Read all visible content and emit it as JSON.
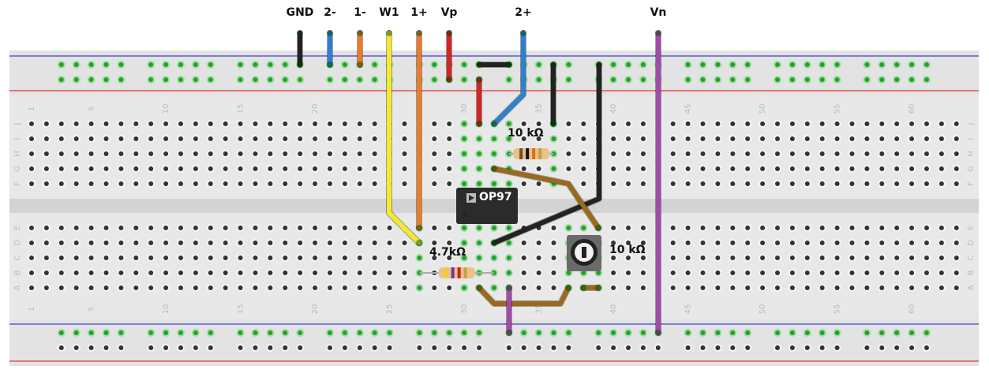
{
  "terminal_labels": [
    {
      "text": "GND",
      "wire_color": "#222222"
    },
    {
      "text": "2-",
      "wire_color": "#2f7fd0"
    },
    {
      "text": "1-",
      "wire_color": "#ea7b2c"
    },
    {
      "text": "W1",
      "wire_color": "#f4ea2a"
    },
    {
      "text": "1+",
      "wire_color": "#ea7b2c"
    },
    {
      "text": "Vp",
      "wire_color": "#d42424"
    },
    {
      "text": "2+",
      "wire_color": "#2f7fd0"
    },
    {
      "text": "Vn",
      "wire_color": "#a24aa8"
    }
  ],
  "components": {
    "r1_label": "10 kΩ",
    "r2_label": "4.7kΩ",
    "pot_label": "10 kΩ",
    "chip_label": "OP97"
  },
  "board": {
    "column_numbers": [
      "1",
      "5",
      "10",
      "15",
      "20",
      "25",
      "30",
      "35",
      "40",
      "45",
      "50",
      "55",
      "60"
    ],
    "rows_top": [
      "J",
      "I",
      "H",
      "G",
      "F"
    ],
    "rows_bottom": [
      "E",
      "D",
      "C",
      "B",
      "A"
    ],
    "colors": {
      "board": "#e3e3e3",
      "hole": "#333333",
      "connected_hole": "#2f9a3a",
      "rail_positive": "#e05555",
      "rail_negative": "#5a5ad0",
      "jumper": "#9a6a1c"
    }
  }
}
